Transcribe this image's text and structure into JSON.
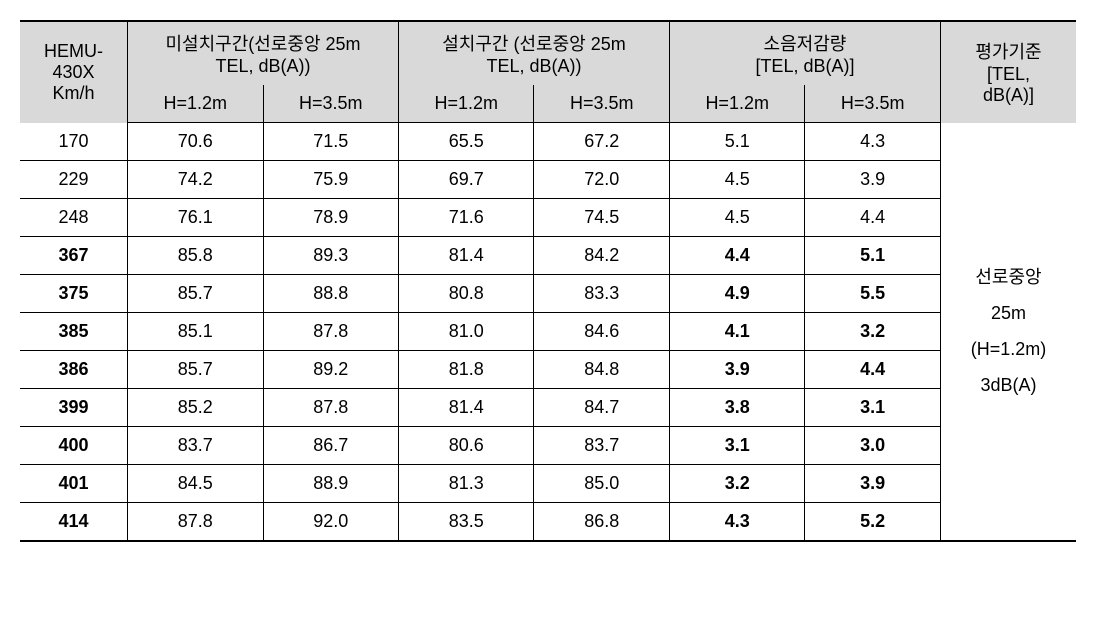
{
  "header": {
    "col0": {
      "line1": "HEMU-",
      "line2": "430X",
      "line3": "Km/h"
    },
    "group1": {
      "line1": "미설치구간(선로중앙 25m",
      "line2": "TEL, dB(A))"
    },
    "group2": {
      "line1": "설치구간 (선로중앙 25m",
      "line2": "TEL, dB(A))"
    },
    "group3": {
      "line1": "소음저감량",
      "line2": "[TEL, dB(A)]"
    },
    "group4": {
      "line1": "평가기준",
      "line2": "[TEL,",
      "line3": "dB(A)]"
    },
    "sub_h12": "H=1.2m",
    "sub_h35": "H=3.5m"
  },
  "criteria": {
    "line1": "선로중앙",
    "line2": "25m",
    "line3": "(H=1.2m)",
    "line4": "3dB(A)"
  },
  "rows": [
    {
      "speed": "170",
      "a": "70.6",
      "b": "71.5",
      "c": "65.5",
      "d": "67.2",
      "e": "5.1",
      "f": "4.3",
      "bold": false
    },
    {
      "speed": "229",
      "a": "74.2",
      "b": "75.9",
      "c": "69.7",
      "d": "72.0",
      "e": "4.5",
      "f": "3.9",
      "bold": false
    },
    {
      "speed": "248",
      "a": "76.1",
      "b": "78.9",
      "c": "71.6",
      "d": "74.5",
      "e": "4.5",
      "f": "4.4",
      "bold": false
    },
    {
      "speed": "367",
      "a": "85.8",
      "b": "89.3",
      "c": "81.4",
      "d": "84.2",
      "e": "4.4",
      "f": "5.1",
      "bold": true
    },
    {
      "speed": "375",
      "a": "85.7",
      "b": "88.8",
      "c": "80.8",
      "d": "83.3",
      "e": "4.9",
      "f": "5.5",
      "bold": true
    },
    {
      "speed": "385",
      "a": "85.1",
      "b": "87.8",
      "c": "81.0",
      "d": "84.6",
      "e": "4.1",
      "f": "3.2",
      "bold": true
    },
    {
      "speed": "386",
      "a": "85.7",
      "b": "89.2",
      "c": "81.8",
      "d": "84.8",
      "e": "3.9",
      "f": "4.4",
      "bold": true
    },
    {
      "speed": "399",
      "a": "85.2",
      "b": "87.8",
      "c": "81.4",
      "d": "84.7",
      "e": "3.8",
      "f": "3.1",
      "bold": true
    },
    {
      "speed": "400",
      "a": "83.7",
      "b": "86.7",
      "c": "80.6",
      "d": "83.7",
      "e": "3.1",
      "f": "3.0",
      "bold": true
    },
    {
      "speed": "401",
      "a": "84.5",
      "b": "88.9",
      "c": "81.3",
      "d": "85.0",
      "e": "3.2",
      "f": "3.9",
      "bold": true
    },
    {
      "speed": "414",
      "a": "87.8",
      "b": "92.0",
      "c": "83.5",
      "d": "86.8",
      "e": "4.3",
      "f": "5.2",
      "bold": true
    }
  ]
}
